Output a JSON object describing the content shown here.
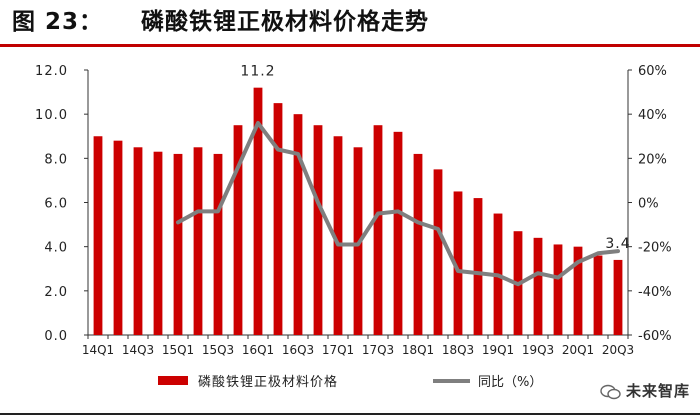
{
  "figure": {
    "label": "图 23：",
    "title": "磷酸铁锂正极材料价格走势"
  },
  "watermark": {
    "text": "未来智库",
    "icon": "wechat-icon"
  },
  "colors": {
    "bar": "#cc0000",
    "line": "#7f7f7f",
    "rule": "#c00000"
  },
  "chart_data": {
    "type": "bar",
    "title": "",
    "categories": [
      "14Q1",
      "14Q2",
      "14Q3",
      "14Q4",
      "15Q1",
      "15Q2",
      "15Q3",
      "15Q4",
      "16Q1",
      "16Q2",
      "16Q3",
      "16Q4",
      "17Q1",
      "17Q2",
      "17Q3",
      "17Q4",
      "18Q1",
      "18Q2",
      "18Q3",
      "18Q4",
      "19Q1",
      "19Q2",
      "19Q3",
      "19Q4",
      "20Q1",
      "20Q2",
      "20Q3"
    ],
    "tick_labels": [
      "14Q1",
      "14Q3",
      "15Q1",
      "15Q3",
      "16Q1",
      "16Q3",
      "17Q1",
      "17Q3",
      "18Q1",
      "18Q3",
      "19Q1",
      "19Q3",
      "20Q1",
      "20Q3"
    ],
    "series": [
      {
        "name": "磷酸铁锂正极材料价格",
        "type": "bar",
        "axis": "left",
        "values": [
          9.0,
          8.8,
          8.5,
          8.3,
          8.2,
          8.5,
          8.2,
          9.5,
          11.2,
          10.5,
          10.0,
          9.5,
          9.0,
          8.5,
          9.5,
          9.2,
          8.2,
          7.5,
          6.5,
          6.2,
          5.5,
          4.7,
          4.4,
          4.1,
          4.0,
          3.6,
          3.4
        ]
      },
      {
        "name": "同比（%）",
        "type": "line",
        "axis": "right",
        "values": [
          null,
          null,
          null,
          null,
          -9,
          -4,
          -4,
          16,
          36,
          24,
          22,
          0,
          -19,
          -19,
          -5,
          -4,
          -9,
          -12,
          -31,
          -32,
          -33,
          -37,
          -32,
          -34,
          -27,
          -23,
          -22
        ]
      }
    ],
    "y_left": {
      "min": 0,
      "max": 12,
      "step": 2,
      "tick_labels": [
        "0.0",
        "2.0",
        "4.0",
        "6.0",
        "8.0",
        "10.0",
        "12.0"
      ]
    },
    "y_right": {
      "min": -60,
      "max": 60,
      "step": 20,
      "tick_labels": [
        "-60%",
        "-40%",
        "-20%",
        "0%",
        "20%",
        "40%",
        "60%"
      ]
    },
    "annotations": [
      {
        "category": "16Q1",
        "text": "11.2"
      },
      {
        "category": "20Q3",
        "text": "3.4"
      }
    ],
    "legend": {
      "placement": "bottom"
    },
    "grid": false
  }
}
